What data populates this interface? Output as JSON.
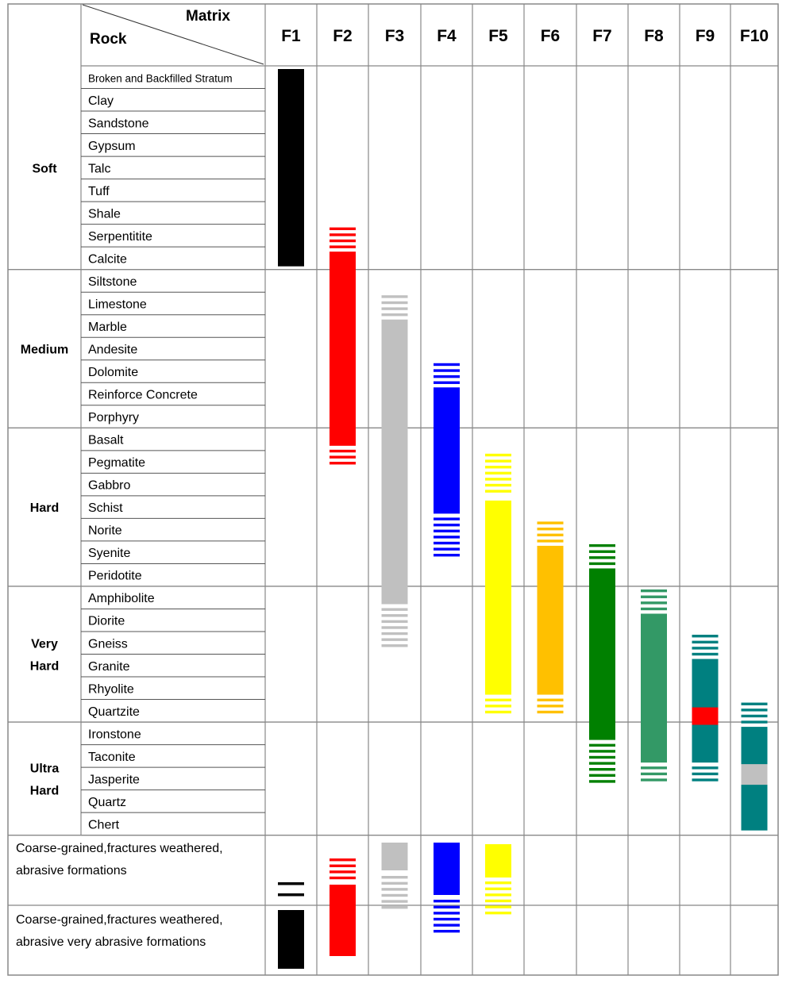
{
  "header": {
    "matrix_label": "Matrix",
    "rock_label": "Rock",
    "columns": [
      "F1",
      "F2",
      "F3",
      "F4",
      "F5",
      "F6",
      "F7",
      "F8",
      "F9",
      "F10"
    ]
  },
  "groups": [
    {
      "label": "Soft",
      "rocks": [
        "Broken and Backfilled Stratum",
        "Clay",
        "Sandstone",
        "Gypsum",
        "Talc",
        "Tuff",
        "Shale",
        "Serpentitite",
        "Calcite"
      ]
    },
    {
      "label": "Medium",
      "rocks": [
        "Siltstone",
        "Limestone",
        "Marble",
        "Andesite",
        "Dolomite",
        "Reinforce Concrete",
        "Porphyry"
      ]
    },
    {
      "label": "Hard",
      "rocks": [
        "Basalt",
        "Pegmatite",
        "Gabbro",
        "Schist",
        "Norite",
        "Syenite",
        "Peridotite"
      ]
    },
    {
      "label": "Very Hard",
      "rocks": [
        "Amphibolite",
        "Diorite",
        "Gneiss",
        "Granite",
        "Rhyolite",
        "Quartzite"
      ]
    },
    {
      "label": "Ultra Hard",
      "rocks": [
        "Ironstone",
        "Taconite",
        "Jasperite",
        "Quartz",
        "Chert"
      ]
    }
  ],
  "formations": [
    {
      "text": "Coarse-grained,fractures weathered, abrasive formations"
    },
    {
      "text": "Coarse-grained,fractures weathered, abrasive very abrasive formations"
    }
  ],
  "colors": {
    "F1": "#000000",
    "F2": "#ff0000",
    "F3": "#c0c0c0",
    "F4": "#0000ff",
    "F5": "#ffff00",
    "F6": "#ffc000",
    "F7": "#008000",
    "F8": "#339966",
    "F9": "#008080",
    "F10": "#008080",
    "F9_accent": "#ff0000",
    "F10_accent": "#c0c0c0",
    "grid": "#888888"
  },
  "chart_data": {
    "type": "range-matrix",
    "x": [
      "F1",
      "F2",
      "F3",
      "F4",
      "F5",
      "F6",
      "F7",
      "F8",
      "F9",
      "F10"
    ],
    "rock_order": [
      "Broken and Backfilled Stratum",
      "Clay",
      "Sandstone",
      "Gypsum",
      "Talc",
      "Tuff",
      "Shale",
      "Serpentitite",
      "Calcite",
      "Siltstone",
      "Limestone",
      "Marble",
      "Andesite",
      "Dolomite",
      "Reinforce Concrete",
      "Porphyry",
      "Basalt",
      "Pegmatite",
      "Gabbro",
      "Schist",
      "Norite",
      "Syenite",
      "Peridotite",
      "Amphibolite",
      "Diorite",
      "Gneiss",
      "Granite",
      "Rhyolite",
      "Quartzite",
      "Ironstone",
      "Taconite",
      "Jasperite",
      "Quartz",
      "Chert"
    ],
    "ranges": [
      {
        "matrix": "F1",
        "from": "Broken and Backfilled Stratum",
        "to": "Calcite"
      },
      {
        "matrix": "F2",
        "from": "Serpentitite",
        "to": "Pegmatite",
        "solid_from": "Calcite",
        "solid_to": "Basalt"
      },
      {
        "matrix": "F3",
        "from": "Limestone",
        "to": "Gneiss",
        "solid_from": "Marble",
        "solid_to": "Amphibolite"
      },
      {
        "matrix": "F4",
        "from": "Dolomite",
        "to": "Syenite",
        "solid_from": "Reinforce Concrete",
        "solid_to": "Schist"
      },
      {
        "matrix": "F5",
        "from": "Pegmatite",
        "to": "Quartzite",
        "solid_from": "Schist",
        "solid_to": "Rhyolite"
      },
      {
        "matrix": "F6",
        "from": "Norite",
        "to": "Quartzite",
        "solid_from": "Syenite",
        "solid_to": "Rhyolite"
      },
      {
        "matrix": "F7",
        "from": "Syenite",
        "to": "Jasperite",
        "solid_from": "Peridotite",
        "solid_to": "Ironstone"
      },
      {
        "matrix": "F8",
        "from": "Amphibolite",
        "to": "Jasperite",
        "solid_from": "Diorite",
        "solid_to": "Taconite"
      },
      {
        "matrix": "F9",
        "from": "Gneiss",
        "to": "Jasperite",
        "solid_from": "Granite",
        "solid_to": "Taconite"
      },
      {
        "matrix": "F10",
        "from": "Quartzite",
        "to": "Chert",
        "solid_from": "Ironstone",
        "solid_to": "Chert"
      }
    ]
  }
}
